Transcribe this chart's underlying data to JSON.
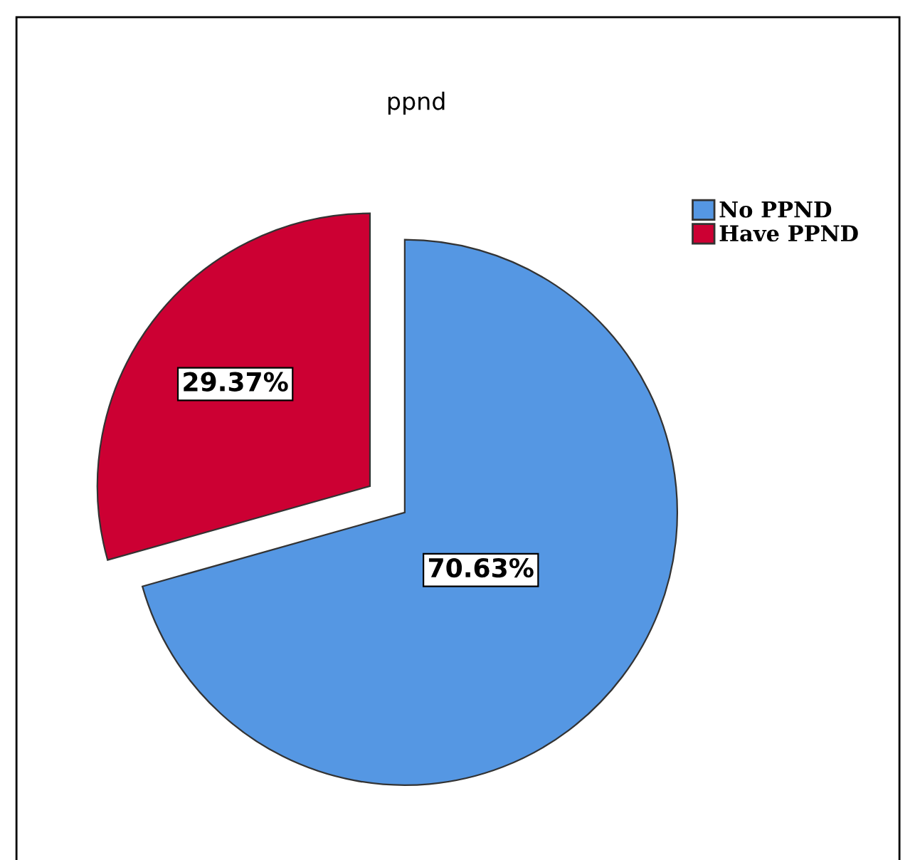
{
  "chart_data": {
    "type": "pie",
    "title": "ppnd",
    "categories": [
      "No PPND",
      "Have PPND"
    ],
    "values": [
      70.63,
      29.37
    ],
    "colors": [
      "#5597e3",
      "#cc0033"
    ],
    "value_labels": [
      "70.63%",
      "29.37%"
    ],
    "legend": "top right"
  }
}
